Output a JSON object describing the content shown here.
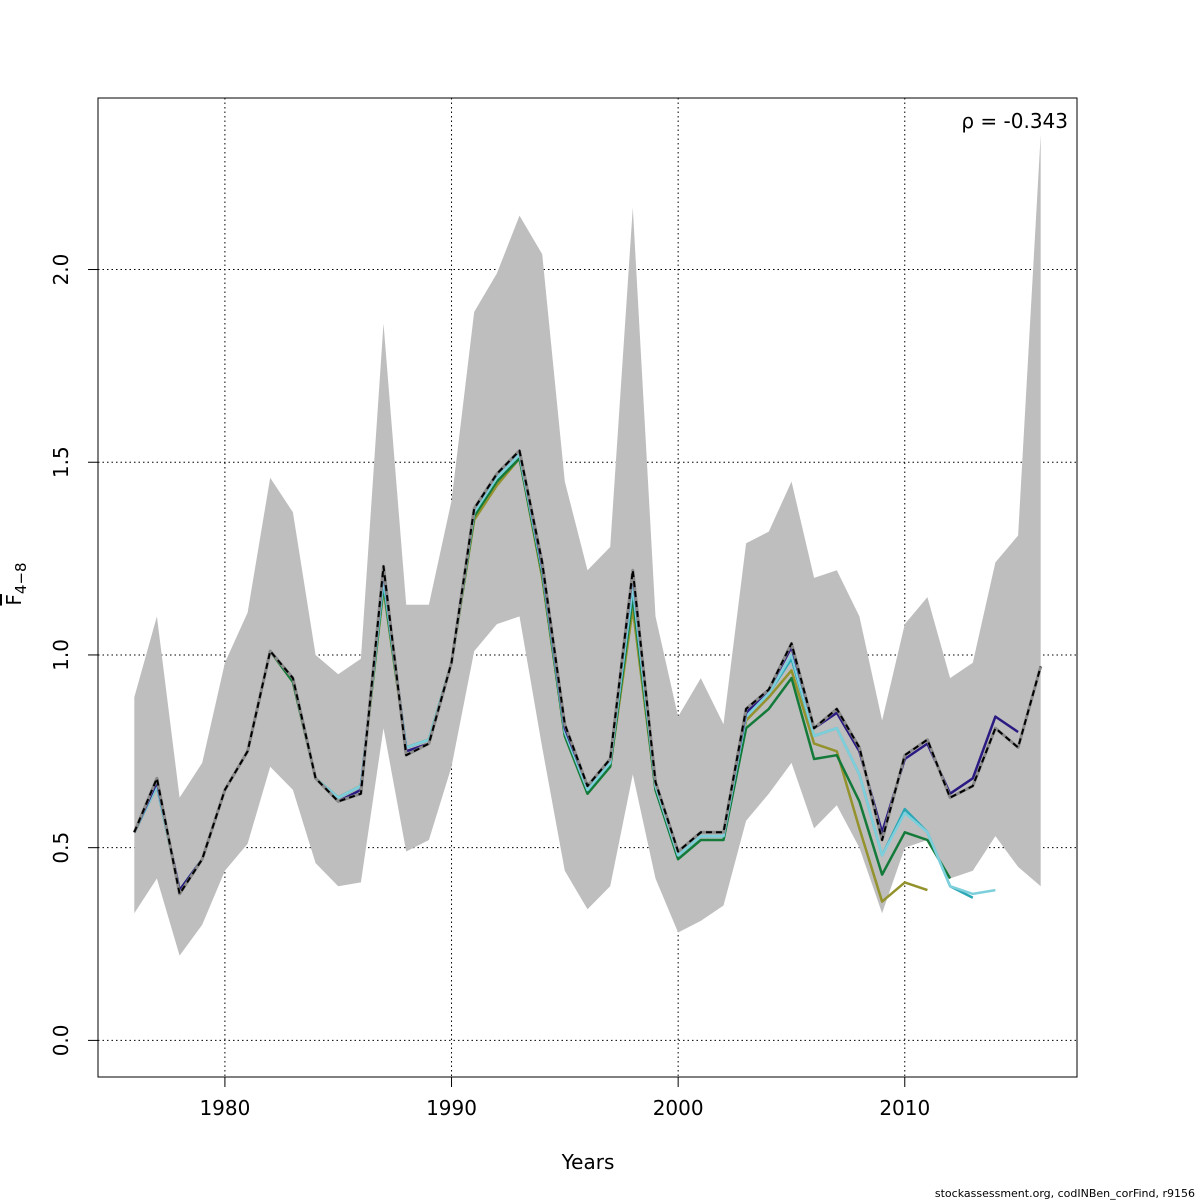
{
  "chart_data": {
    "type": "line",
    "title": "",
    "xlabel": "Years",
    "ylabel_main": "F",
    "ylabel_sub": "4−8",
    "xlim": [
      1974.4,
      2017.6
    ],
    "ylim": [
      -0.095,
      2.445
    ],
    "x_ticks": [
      1980,
      1990,
      2000,
      2010
    ],
    "y_ticks": [
      0.0,
      0.5,
      1.0,
      1.5,
      2.0
    ],
    "y_tick_labels": [
      "0.0",
      "0.5",
      "1.0",
      "1.5",
      "2.0"
    ],
    "grid": true,
    "annotation": "ρ = -0.343",
    "footer": "stockassessment.org, codINBen_corFind, r9156",
    "band": {
      "color": "#bebebe",
      "x": [
        1976,
        1977,
        1978,
        1979,
        1980,
        1981,
        1982,
        1983,
        1984,
        1985,
        1986,
        1987,
        1988,
        1989,
        1990,
        1991,
        1992,
        1993,
        1994,
        1995,
        1996,
        1997,
        1998,
        1999,
        2000,
        2001,
        2002,
        2003,
        2004,
        2005,
        2006,
        2007,
        2008,
        2009,
        2010,
        2011,
        2012,
        2013,
        2014,
        2015,
        2016
      ],
      "upper": [
        0.89,
        1.1,
        0.63,
        0.72,
        0.98,
        1.11,
        1.46,
        1.37,
        1.0,
        0.95,
        0.99,
        1.86,
        1.13,
        1.13,
        1.4,
        1.89,
        1.99,
        2.14,
        2.04,
        1.45,
        1.22,
        1.28,
        2.16,
        1.1,
        0.84,
        0.94,
        0.82,
        1.29,
        1.32,
        1.45,
        1.2,
        1.22,
        1.1,
        0.83,
        1.08,
        1.15,
        0.94,
        0.98,
        1.24,
        1.31,
        2.35
      ],
      "lower": [
        0.33,
        0.42,
        0.22,
        0.3,
        0.44,
        0.51,
        0.71,
        0.65,
        0.46,
        0.4,
        0.41,
        0.81,
        0.49,
        0.52,
        0.71,
        1.01,
        1.08,
        1.1,
        0.76,
        0.44,
        0.34,
        0.4,
        0.69,
        0.42,
        0.28,
        0.31,
        0.35,
        0.57,
        0.64,
        0.72,
        0.55,
        0.61,
        0.5,
        0.33,
        0.5,
        0.52,
        0.42,
        0.44,
        0.53,
        0.45,
        0.4
      ]
    },
    "series": [
      {
        "color": "#000000",
        "dashed": true,
        "start": 1976,
        "values": [
          0.54,
          0.68,
          0.38,
          0.47,
          0.65,
          0.75,
          1.01,
          0.94,
          0.68,
          0.62,
          0.64,
          1.23,
          0.74,
          0.77,
          0.98,
          1.38,
          1.47,
          1.53,
          1.24,
          0.82,
          0.66,
          0.73,
          1.22,
          0.67,
          0.49,
          0.54,
          0.54,
          0.86,
          0.91,
          1.03,
          0.81,
          0.86,
          0.76,
          0.52,
          0.74,
          0.78,
          0.63,
          0.66,
          0.81,
          0.76,
          0.97
        ]
      },
      {
        "color": "#2a1a82",
        "dashed": false,
        "start": 1976,
        "values": [
          0.54,
          0.67,
          0.39,
          0.47,
          0.65,
          0.75,
          1.01,
          0.94,
          0.68,
          0.62,
          0.65,
          1.22,
          0.75,
          0.77,
          0.98,
          1.38,
          1.47,
          1.53,
          1.23,
          0.81,
          0.66,
          0.73,
          1.21,
          0.67,
          0.49,
          0.54,
          0.54,
          0.85,
          0.91,
          1.02,
          0.81,
          0.85,
          0.75,
          0.54,
          0.73,
          0.77,
          0.64,
          0.68,
          0.84,
          0.8
        ]
      },
      {
        "color": "#7ecfdc",
        "dashed": false,
        "start": 1976,
        "values": [
          0.54,
          0.66,
          0.39,
          0.47,
          0.65,
          0.75,
          1.01,
          0.94,
          0.68,
          0.63,
          0.66,
          1.2,
          0.76,
          0.78,
          0.98,
          1.37,
          1.46,
          1.52,
          1.22,
          0.8,
          0.65,
          0.72,
          1.18,
          0.66,
          0.48,
          0.53,
          0.53,
          0.84,
          0.9,
          1.0,
          0.79,
          0.81,
          0.69,
          0.48,
          0.59,
          0.54,
          0.4,
          0.38,
          0.39
        ]
      },
      {
        "color": "#2aa6b4",
        "dashed": false,
        "start": 1976,
        "values": [
          0.54,
          0.66,
          0.39,
          0.47,
          0.65,
          0.75,
          1.01,
          0.94,
          0.68,
          0.63,
          0.66,
          1.19,
          0.76,
          0.78,
          0.98,
          1.37,
          1.46,
          1.52,
          1.22,
          0.8,
          0.65,
          0.72,
          1.17,
          0.66,
          0.48,
          0.53,
          0.53,
          0.84,
          0.9,
          0.99,
          0.79,
          0.81,
          0.69,
          0.48,
          0.6,
          0.54,
          0.4,
          0.37
        ]
      },
      {
        "color": "#137a3a",
        "dashed": false,
        "start": 1976,
        "values": [
          0.54,
          0.66,
          0.39,
          0.47,
          0.65,
          0.75,
          1.01,
          0.93,
          0.68,
          0.63,
          0.66,
          1.18,
          0.76,
          0.78,
          0.98,
          1.36,
          1.45,
          1.51,
          1.21,
          0.79,
          0.64,
          0.71,
          1.15,
          0.65,
          0.47,
          0.52,
          0.52,
          0.81,
          0.86,
          0.94,
          0.73,
          0.74,
          0.62,
          0.43,
          0.54,
          0.52,
          0.42
        ]
      },
      {
        "color": "#93922c",
        "dashed": false,
        "start": 1976,
        "values": [
          0.54,
          0.66,
          0.39,
          0.47,
          0.65,
          0.75,
          1.01,
          0.93,
          0.68,
          0.63,
          0.66,
          1.17,
          0.76,
          0.78,
          0.98,
          1.35,
          1.44,
          1.51,
          1.2,
          0.79,
          0.64,
          0.71,
          1.12,
          0.65,
          0.48,
          0.53,
          0.53,
          0.83,
          0.89,
          0.96,
          0.77,
          0.75,
          0.55,
          0.36,
          0.41,
          0.39
        ]
      }
    ]
  }
}
